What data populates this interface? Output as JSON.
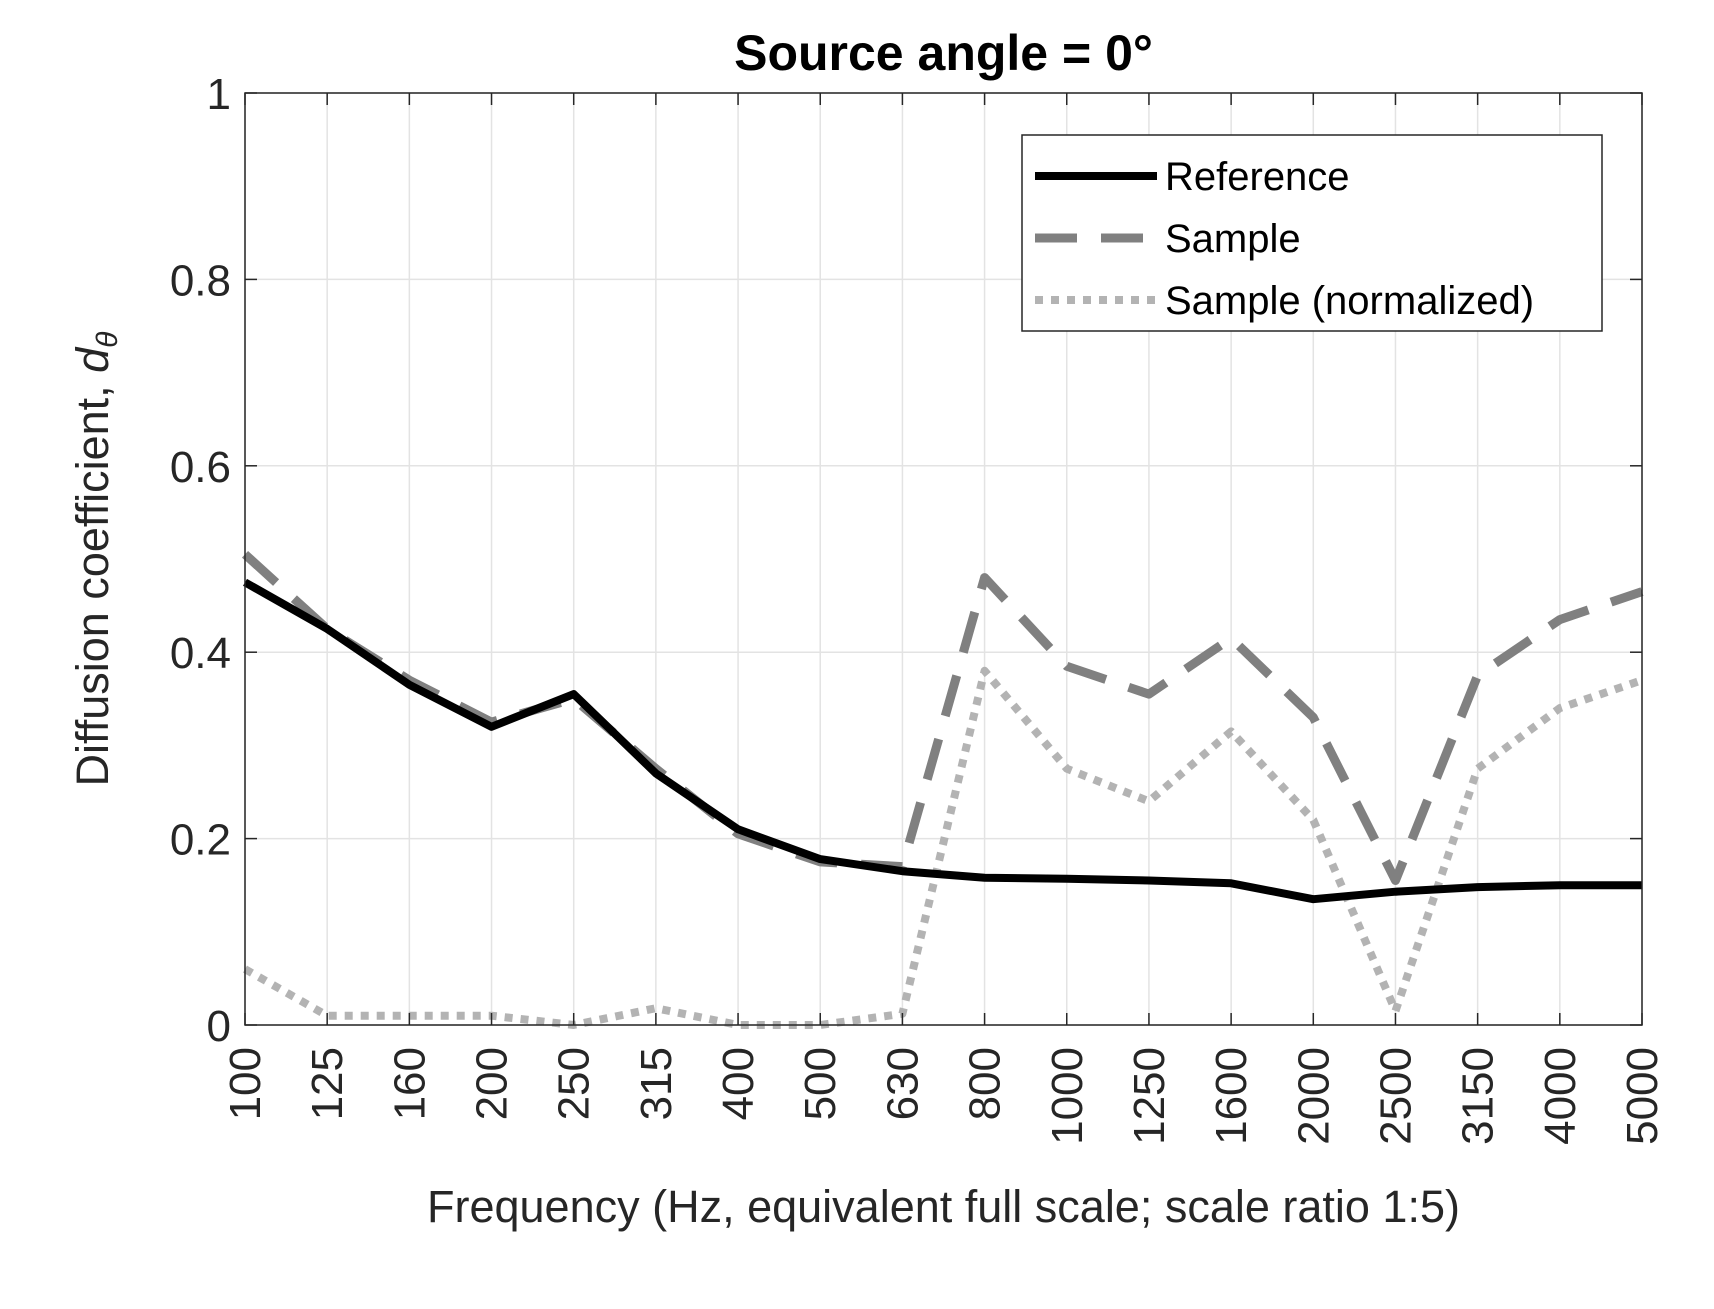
{
  "chart_data": {
    "type": "line",
    "title": "Source angle = 0°",
    "xlabel": "Frequency (Hz, equivalent full scale; scale ratio 1:5)",
    "ylabel": "Diffusion coefficient, ",
    "ylabel_symbol": "d",
    "ylabel_subscript": "θ",
    "categories": [
      "100",
      "125",
      "160",
      "200",
      "250",
      "315",
      "400",
      "500",
      "630",
      "800",
      "1000",
      "1250",
      "1600",
      "2000",
      "2500",
      "3150",
      "4000",
      "5000"
    ],
    "y_ticks": [
      "0",
      "0.2",
      "0.4",
      "0.6",
      "0.8",
      "1"
    ],
    "ylim": [
      0,
      1
    ],
    "grid": true,
    "legend_position": "top-right",
    "series": [
      {
        "name": "Reference",
        "style": "solid",
        "color": "#000000",
        "values": [
          0.475,
          0.425,
          0.365,
          0.32,
          0.355,
          0.27,
          0.21,
          0.178,
          0.165,
          0.158,
          0.157,
          0.155,
          0.152,
          0.135,
          0.143,
          0.148,
          0.15,
          0.15
        ]
      },
      {
        "name": "Sample",
        "style": "dashed",
        "color": "#808080",
        "values": [
          0.505,
          0.425,
          0.37,
          0.325,
          0.35,
          0.275,
          0.205,
          0.175,
          0.17,
          0.48,
          0.385,
          0.355,
          0.415,
          0.33,
          0.155,
          0.375,
          0.435,
          0.465
        ]
      },
      {
        "name": "Sample (normalized)",
        "style": "dotted",
        "color": "#b3b3b3",
        "values": [
          0.06,
          0.01,
          0.01,
          0.01,
          0.0,
          0.018,
          0.0,
          0.0,
          0.012,
          0.38,
          0.275,
          0.24,
          0.315,
          0.22,
          0.015,
          0.275,
          0.34,
          0.37
        ]
      }
    ]
  }
}
